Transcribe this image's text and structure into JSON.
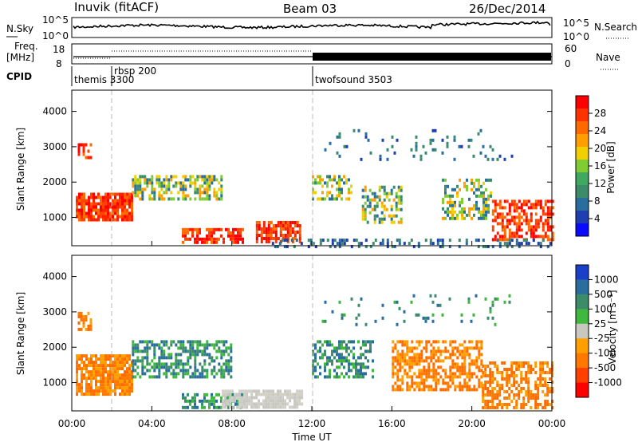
{
  "header": {
    "station": "Inuvik (fitACF)",
    "beam": "Beam 03",
    "date": "26/Dec/2014"
  },
  "panels": {
    "nsky": {
      "left_label": "N.Sky",
      "top_tick": "10^5",
      "bottom_tick": "10^0",
      "right_top": "10^5",
      "right_bottom": "10^0",
      "right_label": "N.Search"
    },
    "freq": {
      "left_label_1": "Freq.",
      "left_label_2": "[MHz]",
      "top_tick": "18",
      "bottom_tick": "8",
      "right_top": "60",
      "right_bottom": "0",
      "right_label": "Nave"
    },
    "cpid": {
      "left_label": "CPID",
      "modes": [
        "themis 3300",
        "rbsp 200",
        "twofsound 3503"
      ]
    }
  },
  "chart_data": [
    {
      "type": "heatmap",
      "name": "power",
      "xlabel": "",
      "ylabel": "Slant Range [km]",
      "xlim": [
        0,
        24
      ],
      "ylim": [
        200,
        4600
      ],
      "y_ticks": [
        "1000",
        "2000",
        "3000",
        "4000"
      ],
      "colorbar": {
        "label": "Power [dB]",
        "ticks": [
          "28",
          "24",
          "20",
          "16",
          "12",
          "8",
          "4"
        ],
        "colors": [
          "#ff0000",
          "#ff3300",
          "#ff6a00",
          "#ffa000",
          "#f0d000",
          "#7fcc33",
          "#40a860",
          "#3c8c6c",
          "#2a6ea0",
          "#1f3fb0",
          "#0a0aff"
        ]
      }
    },
    {
      "type": "heatmap",
      "name": "velocity",
      "xlabel": "Time UT",
      "ylabel": "Slant Range [km]",
      "xlim": [
        0,
        24
      ],
      "ylim": [
        200,
        4600
      ],
      "x_ticks": [
        "00:00",
        "04:00",
        "08:00",
        "12:00",
        "16:00",
        "20:00",
        "00:00"
      ],
      "y_ticks": [
        "1000",
        "2000",
        "3000",
        "4000"
      ],
      "colorbar": {
        "label": "Velocity [m s⁻¹]",
        "ticks": [
          "1000",
          "500",
          "100",
          "25",
          "-25",
          "-100",
          "-500",
          "-1000"
        ],
        "colors": [
          "#1a3fc8",
          "#2a6ea0",
          "#3c8c6c",
          "#40b840",
          "#c8c8c0",
          "#ffa000",
          "#ff7800",
          "#ff4000",
          "#ff0000"
        ]
      }
    }
  ]
}
